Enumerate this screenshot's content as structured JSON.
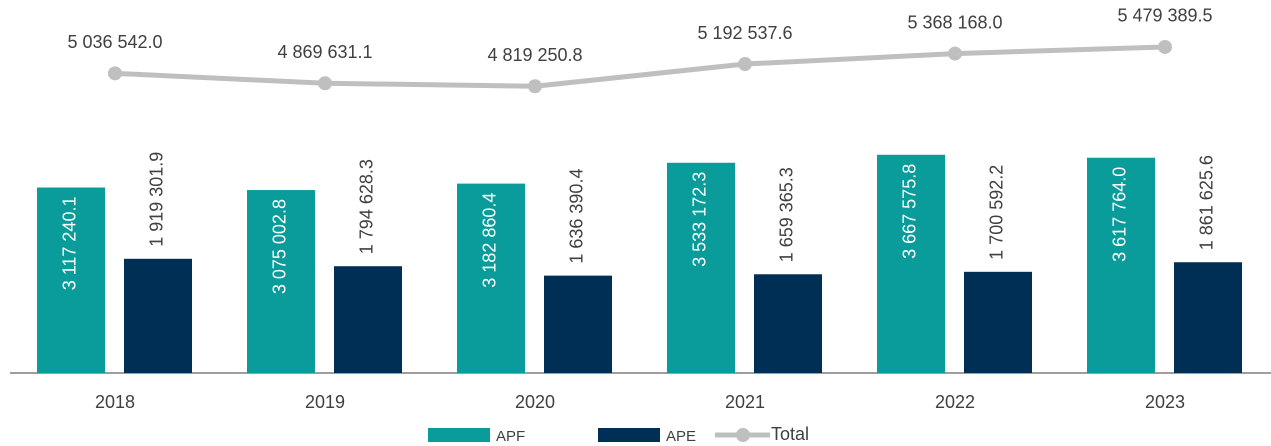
{
  "chart_data": {
    "type": "bar",
    "categories": [
      "2018",
      "2019",
      "2020",
      "2021",
      "2022",
      "2023"
    ],
    "series": [
      {
        "name": "APF",
        "color": "#0a9b9b",
        "values": [
          3117240.1,
          3075002.8,
          3182860.4,
          3533172.3,
          3667575.8,
          3617764.0
        ],
        "value_labels": [
          "3 117 240.1",
          "3 075 002.8",
          "3 182 860.4",
          "3 533 172.3",
          "3 667 575.8",
          "3 617 764.0"
        ]
      },
      {
        "name": "APE",
        "color": "#002f56",
        "values": [
          1919301.9,
          1794628.3,
          1636390.4,
          1659365.3,
          1700592.2,
          1861625.6
        ],
        "value_labels": [
          "1 919 301.9",
          "1 794 628.3",
          "1 636 390.4",
          "1 659 365.3",
          "1 700 592.2",
          "1 861 625.6"
        ]
      },
      {
        "name": "Total",
        "type": "line",
        "color": "#bfbfbf",
        "values": [
          5036542.0,
          4869631.1,
          4819250.8,
          5192537.6,
          5368168.0,
          5479389.5
        ],
        "value_labels": [
          "5 036 542.0",
          "4 869 631.1",
          "4 819 250.8",
          "5 192 537.6",
          "5 368 168.0",
          "5 479 389.5"
        ]
      }
    ],
    "ylim": [
      0,
      6000000
    ],
    "legend": "bottom"
  }
}
